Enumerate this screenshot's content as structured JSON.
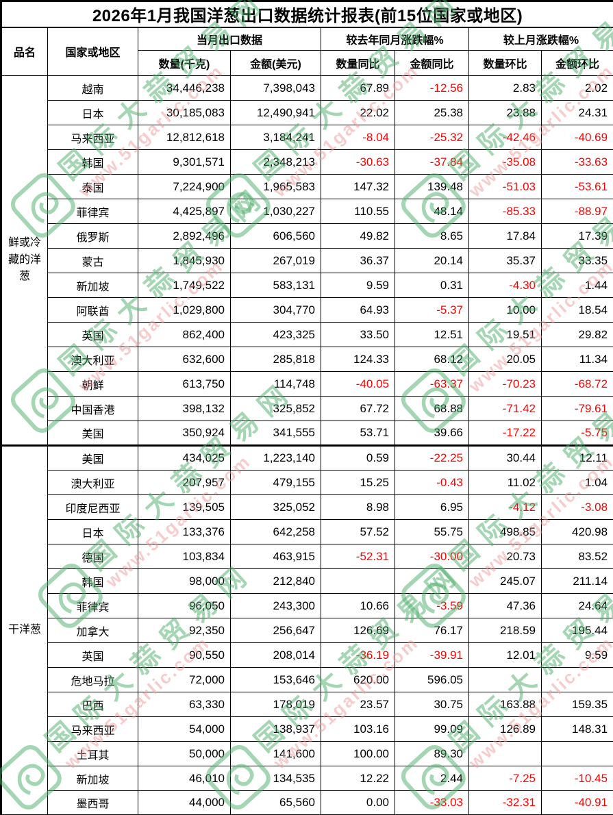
{
  "title": "2026年1月我国洋葱出口数据统计报表(前15位国家或地区)",
  "columns": {
    "product": "品名",
    "country": "国家或地区",
    "current_month": "当月出口数据",
    "qty_kg": "数量(千克)",
    "amount_usd": "金额(美元)",
    "yoy": "较去年同月涨跌幅%",
    "qty_yoy": "数量同比",
    "amount_yoy": "金额同比",
    "mom": "较上月涨跌幅%",
    "qty_mom": "数量环比",
    "amount_mom": "金额环比"
  },
  "sections": [
    {
      "product": "鲜或冷藏的洋葱",
      "rows": [
        {
          "country": "越南",
          "qty": "34,446,238",
          "amount": "7,398,043",
          "qty_yoy": "67.89",
          "amount_yoy": "-12.56",
          "qty_mom": "2.83",
          "amount_mom": "2.02"
        },
        {
          "country": "日本",
          "qty": "30,185,083",
          "amount": "12,490,941",
          "qty_yoy": "22.02",
          "amount_yoy": "25.38",
          "qty_mom": "23.88",
          "amount_mom": "24.31"
        },
        {
          "country": "马来西亚",
          "qty": "12,812,618",
          "amount": "3,184,241",
          "qty_yoy": "-8.04",
          "amount_yoy": "-25.32",
          "qty_mom": "-42.46",
          "amount_mom": "-40.69"
        },
        {
          "country": "韩国",
          "qty": "9,301,571",
          "amount": "2,348,213",
          "qty_yoy": "-30.63",
          "amount_yoy": "-37.84",
          "qty_mom": "-35.08",
          "amount_mom": "-33.63"
        },
        {
          "country": "泰国",
          "qty": "7,224,900",
          "amount": "1,965,583",
          "qty_yoy": "147.32",
          "amount_yoy": "139.48",
          "qty_mom": "-51.03",
          "amount_mom": "-53.61"
        },
        {
          "country": "菲律宾",
          "qty": "4,425,897",
          "amount": "1,030,227",
          "qty_yoy": "110.55",
          "amount_yoy": "48.14",
          "qty_mom": "-85.33",
          "amount_mom": "-88.97"
        },
        {
          "country": "俄罗斯",
          "qty": "2,892,496",
          "amount": "606,560",
          "qty_yoy": "49.82",
          "amount_yoy": "8.65",
          "qty_mom": "17.84",
          "amount_mom": "17.39"
        },
        {
          "country": "蒙古",
          "qty": "1,845,930",
          "amount": "267,019",
          "qty_yoy": "36.37",
          "amount_yoy": "20.14",
          "qty_mom": "35.37",
          "amount_mom": "33.35"
        },
        {
          "country": "新加坡",
          "qty": "1,749,522",
          "amount": "583,131",
          "qty_yoy": "9.59",
          "amount_yoy": "0.31",
          "qty_mom": "-4.30",
          "amount_mom": "1.44"
        },
        {
          "country": "阿联酋",
          "qty": "1,029,800",
          "amount": "304,770",
          "qty_yoy": "64.93",
          "amount_yoy": "-5.37",
          "qty_mom": "10.00",
          "amount_mom": "18.54"
        },
        {
          "country": "英国",
          "qty": "862,400",
          "amount": "423,325",
          "qty_yoy": "33.50",
          "amount_yoy": "12.51",
          "qty_mom": "19.51",
          "amount_mom": "29.82"
        },
        {
          "country": "澳大利亚",
          "qty": "632,600",
          "amount": "285,818",
          "qty_yoy": "124.33",
          "amount_yoy": "68.12",
          "qty_mom": "20.05",
          "amount_mom": "11.34"
        },
        {
          "country": "朝鲜",
          "qty": "613,750",
          "amount": "114,748",
          "qty_yoy": "-40.05",
          "amount_yoy": "-63.37",
          "qty_mom": "-70.23",
          "amount_mom": "-68.72"
        },
        {
          "country": "中国香港",
          "qty": "398,132",
          "amount": "325,852",
          "qty_yoy": "67.72",
          "amount_yoy": "68.88",
          "qty_mom": "-71.42",
          "amount_mom": "-79.61"
        },
        {
          "country": "美国",
          "qty": "350,924",
          "amount": "341,555",
          "qty_yoy": "53.71",
          "amount_yoy": "39.66",
          "qty_mom": "-17.22",
          "amount_mom": "-5.75"
        }
      ]
    },
    {
      "product": "干洋葱",
      "rows": [
        {
          "country": "美国",
          "qty": "434,025",
          "amount": "1,223,140",
          "qty_yoy": "0.59",
          "amount_yoy": "-22.25",
          "qty_mom": "30.44",
          "amount_mom": "12.11"
        },
        {
          "country": "澳大利亚",
          "qty": "207,957",
          "amount": "479,155",
          "qty_yoy": "15.25",
          "amount_yoy": "-0.43",
          "qty_mom": "11.02",
          "amount_mom": "1.04"
        },
        {
          "country": "印度尼西亚",
          "qty": "139,505",
          "amount": "325,052",
          "qty_yoy": "8.98",
          "amount_yoy": "6.95",
          "qty_mom": "-4.12",
          "amount_mom": "-3.08"
        },
        {
          "country": "日本",
          "qty": "133,376",
          "amount": "642,258",
          "qty_yoy": "57.52",
          "amount_yoy": "55.75",
          "qty_mom": "498.85",
          "amount_mom": "420.98"
        },
        {
          "country": "德国",
          "qty": "103,834",
          "amount": "463,915",
          "qty_yoy": "-52.31",
          "amount_yoy": "-30.00",
          "qty_mom": "20.73",
          "amount_mom": "83.52"
        },
        {
          "country": "韩国",
          "qty": "98,000",
          "amount": "212,840",
          "qty_yoy": "",
          "amount_yoy": "",
          "qty_mom": "245.07",
          "amount_mom": "211.14"
        },
        {
          "country": "菲律宾",
          "qty": "96,050",
          "amount": "243,300",
          "qty_yoy": "10.66",
          "amount_yoy": "-3.59",
          "qty_mom": "47.36",
          "amount_mom": "24.64"
        },
        {
          "country": "加拿大",
          "qty": "92,350",
          "amount": "256,647",
          "qty_yoy": "126.69",
          "amount_yoy": "76.17",
          "qty_mom": "218.59",
          "amount_mom": "195.44"
        },
        {
          "country": "英国",
          "qty": "90,550",
          "amount": "208,014",
          "qty_yoy": "-36.19",
          "amount_yoy": "-39.91",
          "qty_mom": "12.01",
          "amount_mom": "9.59"
        },
        {
          "country": "危地马拉",
          "qty": "72,000",
          "amount": "153,646",
          "qty_yoy": "620.00",
          "amount_yoy": "596.05",
          "qty_mom": "",
          "amount_mom": ""
        },
        {
          "country": "巴西",
          "qty": "63,330",
          "amount": "178,019",
          "qty_yoy": "23.57",
          "amount_yoy": "30.75",
          "qty_mom": "163.88",
          "amount_mom": "159.35"
        },
        {
          "country": "马来西亚",
          "qty": "54,000",
          "amount": "138,937",
          "qty_yoy": "103.16",
          "amount_yoy": "99.09",
          "qty_mom": "126.89",
          "amount_mom": "148.31"
        },
        {
          "country": "土耳其",
          "qty": "50,000",
          "amount": "141,600",
          "qty_yoy": "100.00",
          "amount_yoy": "89.30",
          "qty_mom": "",
          "amount_mom": ""
        },
        {
          "country": "新加坡",
          "qty": "46,010",
          "amount": "134,535",
          "qty_yoy": "12.22",
          "amount_yoy": "2.44",
          "qty_mom": "-7.25",
          "amount_mom": "-10.45"
        },
        {
          "country": "墨西哥",
          "qty": "44,000",
          "amount": "65,560",
          "qty_yoy": "0.00",
          "amount_yoy": "-33.03",
          "qty_mom": "-32.31",
          "amount_mom": "-40.91"
        }
      ]
    }
  ],
  "watermark": {
    "site_name": "国际大蒜贸易网",
    "site_url": "www.51garlic.com"
  },
  "colors": {
    "negative_value": "#ff0000",
    "text": "#000000",
    "border": "#000000",
    "background": "#ffffff",
    "watermark_green": "#4daf6a",
    "watermark_pink": "#ef9a9a"
  }
}
